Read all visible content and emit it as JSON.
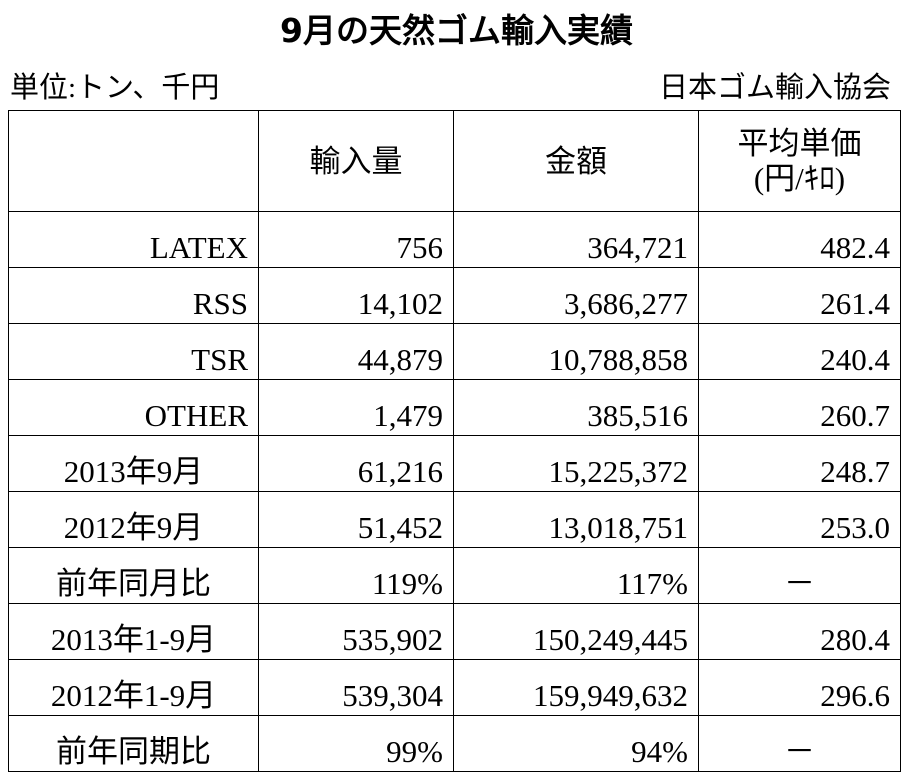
{
  "header": {
    "title": "9月の天然ゴム輸入実績",
    "unit": "単位:トン、千円",
    "source": "日本ゴム輸入協会"
  },
  "table": {
    "columns": [
      "輸入量",
      "金額",
      [
        "平均単価",
        "(円/ｷﾛ)"
      ]
    ],
    "rows": [
      [
        "LATEX",
        "756",
        "364,721",
        "482.4"
      ],
      [
        "RSS",
        "14,102",
        "3,686,277",
        "261.4"
      ],
      [
        "TSR",
        "44,879",
        "10,788,858",
        "240.4"
      ],
      [
        "OTHER",
        "1,479",
        "385,516",
        "260.7"
      ],
      [
        "2013年9月",
        "61,216",
        "15,225,372",
        "248.7"
      ],
      [
        "2012年9月",
        "51,452",
        "13,018,751",
        "253.0"
      ],
      [
        "前年同月比",
        "119%",
        "117%",
        "－"
      ],
      [
        "2013年1-9月",
        "535,902",
        "150,249,445",
        "280.4"
      ],
      [
        "2012年1-9月",
        "539,304",
        "159,949,632",
        "296.6"
      ],
      [
        "前年同期比",
        "99%",
        "94%",
        "－"
      ]
    ]
  }
}
